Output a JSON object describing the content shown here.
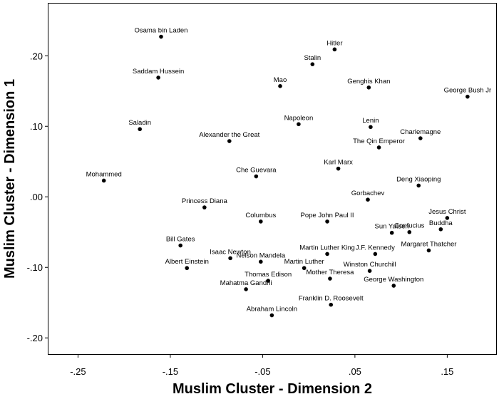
{
  "chart_data": {
    "type": "scatter",
    "title": "",
    "xlabel": "Muslim Cluster - Dimension 2",
    "ylabel": "Muslim Cluster - Dimension 1",
    "xlim": [
      -0.282,
      0.203
    ],
    "ylim": [
      -0.223,
      0.274
    ],
    "x_ticks": [
      -0.25,
      -0.15,
      -0.05,
      0.05,
      0.15
    ],
    "x_tick_labels": [
      "-.25",
      "-.15",
      "-.05",
      ".05",
      ".15"
    ],
    "y_ticks": [
      0.2,
      0.1,
      0.0,
      -0.1,
      -0.2
    ],
    "y_tick_labels": [
      ".20",
      ".10",
      ".00",
      "-.10",
      "-.20"
    ],
    "grid": false,
    "legend": "none",
    "point_color": "#000000",
    "points": [
      {
        "label": "Osama bin Laden",
        "x": -0.16,
        "y": 0.227
      },
      {
        "label": "Hitler",
        "x": 0.028,
        "y": 0.209
      },
      {
        "label": "Stalin",
        "x": 0.004,
        "y": 0.188
      },
      {
        "label": "Saddam Hussein",
        "x": -0.163,
        "y": 0.169
      },
      {
        "label": "Mao",
        "x": -0.031,
        "y": 0.157
      },
      {
        "label": "Genghis Khan",
        "x": 0.065,
        "y": 0.155
      },
      {
        "label": "George Bush Jr",
        "x": 0.172,
        "y": 0.142
      },
      {
        "label": "Napoleon",
        "x": -0.011,
        "y": 0.103
      },
      {
        "label": "Lenin",
        "x": 0.067,
        "y": 0.099
      },
      {
        "label": "Saladin",
        "x": -0.183,
        "y": 0.096
      },
      {
        "label": "Charlemagne",
        "x": 0.121,
        "y": 0.083
      },
      {
        "label": "Alexander the Great",
        "x": -0.086,
        "y": 0.079
      },
      {
        "label": "The Qin Emperor",
        "x": 0.076,
        "y": 0.07
      },
      {
        "label": "Karl Marx",
        "x": 0.032,
        "y": 0.04
      },
      {
        "label": "Che Guevara",
        "x": -0.057,
        "y": 0.029
      },
      {
        "label": "Mohammed",
        "x": -0.222,
        "y": 0.023
      },
      {
        "label": "Deng Xiaoping",
        "x": 0.119,
        "y": 0.016
      },
      {
        "label": "Gorbachev",
        "x": 0.064,
        "y": -0.004
      },
      {
        "label": "Princess Diana",
        "x": -0.113,
        "y": -0.015
      },
      {
        "label": "Jesus Christ",
        "x": 0.15,
        "y": -0.03
      },
      {
        "label": "Columbus",
        "x": -0.052,
        "y": -0.035
      },
      {
        "label": "Pope John Paul II",
        "x": 0.02,
        "y": -0.035
      },
      {
        "label": "Buddha",
        "x": 0.143,
        "y": -0.046
      },
      {
        "label": "Sun Yatsen",
        "x": 0.09,
        "y": -0.051
      },
      {
        "label": "Confucius",
        "x": 0.109,
        "y": -0.05
      },
      {
        "label": "Bill Gates",
        "x": -0.139,
        "y": -0.069
      },
      {
        "label": "Margaret Thatcher",
        "x": 0.13,
        "y": -0.076
      },
      {
        "label": "Martin Luther King",
        "x": 0.02,
        "y": -0.081
      },
      {
        "label": "J.F. Kennedy",
        "x": 0.072,
        "y": -0.081
      },
      {
        "label": "Isaac Newton",
        "x": -0.085,
        "y": -0.087
      },
      {
        "label": "Nelson Mandela",
        "x": -0.052,
        "y": -0.092
      },
      {
        "label": "Albert Einstein",
        "x": -0.132,
        "y": -0.101
      },
      {
        "label": "Martin Luther",
        "x": -0.005,
        "y": -0.101
      },
      {
        "label": "Winston Churchill",
        "x": 0.066,
        "y": -0.105
      },
      {
        "label": "Mother Theresa",
        "x": 0.023,
        "y": -0.116
      },
      {
        "label": "Thomas Edison",
        "x": -0.044,
        "y": -0.119
      },
      {
        "label": "George Washington",
        "x": 0.092,
        "y": -0.126
      },
      {
        "label": "Mahatma Gandhi",
        "x": -0.068,
        "y": -0.131
      },
      {
        "label": "Franklin D. Roosevelt",
        "x": 0.024,
        "y": -0.153
      },
      {
        "label": "Abraham Lincoln",
        "x": -0.04,
        "y": -0.168
      }
    ]
  }
}
